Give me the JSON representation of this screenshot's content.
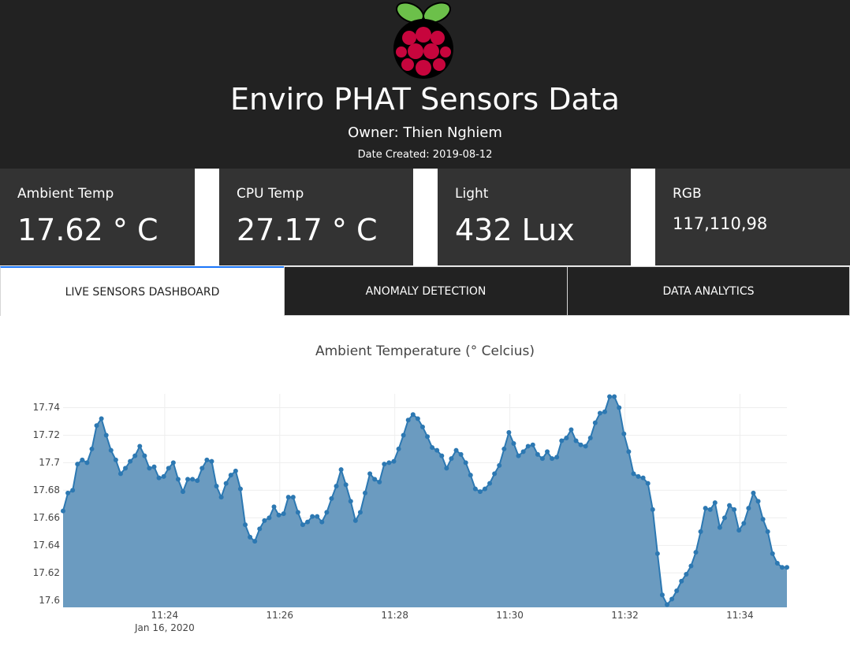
{
  "header": {
    "title": "Enviro PHAT Sensors Data",
    "owner": "Owner: Thien Nghiem",
    "date_created": "Date Created: 2019-08-12"
  },
  "cards": [
    {
      "label": "Ambient Temp",
      "value": "17.62 ° C"
    },
    {
      "label": "CPU Temp",
      "value": "27.17 ° C"
    },
    {
      "label": "Light",
      "value": "432 Lux"
    },
    {
      "label": "RGB",
      "value": "117,110,98"
    }
  ],
  "tabs": {
    "items": [
      "LIVE SENSORS DASHBOARD",
      "ANOMALY DETECTION",
      "DATA ANALYTICS"
    ],
    "active": 0
  },
  "chart_data": {
    "type": "area",
    "title": "Ambient Temperature (° Celcius)",
    "x_date_label": "Jan 16, 2020",
    "x": [
      "11:22:14",
      "11:22:19",
      "11:22:24",
      "11:22:29",
      "11:22:34",
      "11:22:39",
      "11:22:44",
      "11:22:49",
      "11:22:54",
      "11:22:59",
      "11:23:04",
      "11:23:09",
      "11:23:14",
      "11:23:19",
      "11:23:24",
      "11:23:29",
      "11:23:34",
      "11:23:39",
      "11:23:44",
      "11:23:49",
      "11:23:54",
      "11:23:59",
      "11:24:04",
      "11:24:09",
      "11:24:14",
      "11:24:19",
      "11:24:24",
      "11:24:29",
      "11:24:34",
      "11:24:39",
      "11:24:44",
      "11:24:49",
      "11:24:54",
      "11:24:59",
      "11:25:04",
      "11:25:09",
      "11:25:14",
      "11:25:19",
      "11:25:24",
      "11:25:29",
      "11:25:34",
      "11:25:39",
      "11:25:44",
      "11:25:49",
      "11:25:54",
      "11:25:59",
      "11:26:04",
      "11:26:09",
      "11:26:14",
      "11:26:19",
      "11:26:24",
      "11:26:29",
      "11:26:34",
      "11:26:39",
      "11:26:44",
      "11:26:49",
      "11:26:54",
      "11:26:59",
      "11:27:04",
      "11:27:09",
      "11:27:14",
      "11:27:19",
      "11:27:24",
      "11:27:29",
      "11:27:34",
      "11:27:39",
      "11:27:44",
      "11:27:49",
      "11:27:54",
      "11:27:59",
      "11:28:04",
      "11:28:09",
      "11:28:14",
      "11:28:19",
      "11:28:24",
      "11:28:29",
      "11:28:34",
      "11:28:39",
      "11:28:44",
      "11:28:49",
      "11:28:54",
      "11:28:59",
      "11:29:04",
      "11:29:09",
      "11:29:14",
      "11:29:19",
      "11:29:24",
      "11:29:29",
      "11:29:34",
      "11:29:39",
      "11:29:44",
      "11:29:49",
      "11:29:54",
      "11:29:59",
      "11:30:04",
      "11:30:09",
      "11:30:14",
      "11:30:19",
      "11:30:24",
      "11:30:29",
      "11:30:34",
      "11:30:39",
      "11:30:44",
      "11:30:49",
      "11:30:54",
      "11:30:59",
      "11:31:04",
      "11:31:09",
      "11:31:14",
      "11:31:19",
      "11:31:24",
      "11:31:29",
      "11:31:34",
      "11:31:39",
      "11:31:44",
      "11:31:49",
      "11:31:54",
      "11:31:59",
      "11:32:04",
      "11:32:09",
      "11:32:14",
      "11:32:19",
      "11:32:24",
      "11:32:29",
      "11:32:34",
      "11:32:39",
      "11:32:44",
      "11:32:49",
      "11:32:54",
      "11:32:59",
      "11:33:04",
      "11:33:09",
      "11:33:14",
      "11:33:19",
      "11:33:24",
      "11:33:29",
      "11:33:34",
      "11:33:39",
      "11:33:44",
      "11:33:49",
      "11:33:54",
      "11:33:59",
      "11:34:04",
      "11:34:09",
      "11:34:14",
      "11:34:19",
      "11:34:24",
      "11:34:29",
      "11:34:34",
      "11:34:39",
      "11:34:44",
      "11:34:49"
    ],
    "series": [
      {
        "name": "Ambient Temperature",
        "color": "#2c78b2",
        "fill": "#6b9bc0",
        "values": [
          17.665,
          17.678,
          17.68,
          17.699,
          17.702,
          17.7,
          17.71,
          17.727,
          17.732,
          17.72,
          17.709,
          17.702,
          17.692,
          17.696,
          17.701,
          17.705,
          17.712,
          17.705,
          17.696,
          17.697,
          17.689,
          17.69,
          17.696,
          17.7,
          17.688,
          17.679,
          17.688,
          17.688,
          17.687,
          17.696,
          17.702,
          17.701,
          17.683,
          17.675,
          17.685,
          17.691,
          17.694,
          17.681,
          17.655,
          17.646,
          17.643,
          17.652,
          17.658,
          17.66,
          17.668,
          17.662,
          17.663,
          17.675,
          17.675,
          17.664,
          17.655,
          17.657,
          17.661,
          17.661,
          17.657,
          17.664,
          17.674,
          17.683,
          17.695,
          17.684,
          17.672,
          17.658,
          17.664,
          17.678,
          17.692,
          17.688,
          17.686,
          17.699,
          17.7,
          17.701,
          17.71,
          17.72,
          17.731,
          17.735,
          17.732,
          17.726,
          17.719,
          17.711,
          17.709,
          17.705,
          17.696,
          17.703,
          17.709,
          17.706,
          17.7,
          17.691,
          17.681,
          17.679,
          17.681,
          17.685,
          17.692,
          17.698,
          17.71,
          17.722,
          17.714,
          17.705,
          17.708,
          17.712,
          17.713,
          17.706,
          17.703,
          17.708,
          17.703,
          17.704,
          17.716,
          17.718,
          17.724,
          17.716,
          17.713,
          17.712,
          17.718,
          17.729,
          17.736,
          17.737,
          17.748,
          17.748,
          17.74,
          17.721,
          17.708,
          17.692,
          17.69,
          17.689,
          17.685,
          17.666,
          17.634,
          17.604,
          17.597,
          17.601,
          17.607,
          17.614,
          17.619,
          17.625,
          17.635,
          17.65,
          17.667,
          17.666,
          17.671,
          17.653,
          17.66,
          17.669,
          17.666,
          17.651,
          17.656,
          17.667,
          17.678,
          17.672,
          17.659,
          17.65,
          17.634,
          17.627,
          17.624,
          17.624
        ]
      }
    ],
    "xlim": [
      "11:22:14",
      "11:34:49"
    ],
    "xticks": [
      {
        "value": "11:24:00",
        "label": "11:24"
      },
      {
        "value": "11:26:00",
        "label": "11:26"
      },
      {
        "value": "11:28:00",
        "label": "11:28"
      },
      {
        "value": "11:30:00",
        "label": "11:30"
      },
      {
        "value": "11:32:00",
        "label": "11:32"
      },
      {
        "value": "11:34:00",
        "label": "11:34"
      }
    ],
    "ylim": [
      17.595,
      17.75
    ],
    "yticks": [
      17.6,
      17.62,
      17.64,
      17.66,
      17.68,
      17.7,
      17.72,
      17.74
    ],
    "grid": true,
    "markers": true
  }
}
